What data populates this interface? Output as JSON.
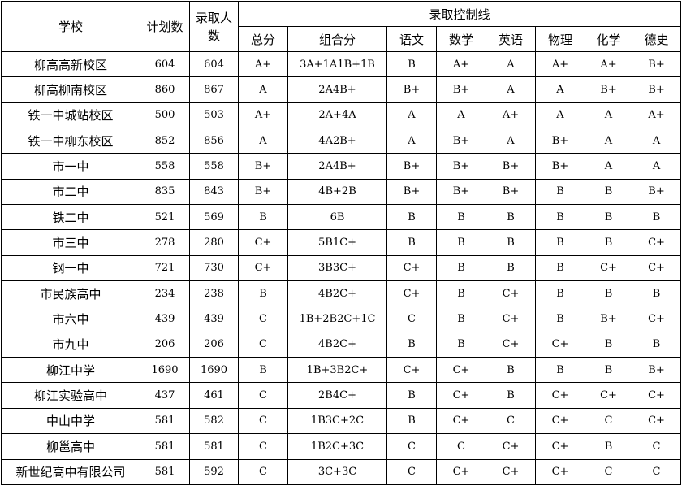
{
  "header": {
    "school": "学校",
    "plan": "计划数",
    "admitted": "录取人数",
    "control_line": "录取控制线",
    "subcolumns": [
      "总分",
      "组合分",
      "语文",
      "数学",
      "英语",
      "物理",
      "化学",
      "德史"
    ]
  },
  "rows": [
    {
      "school": "柳高高新校区",
      "plan": "604",
      "admitted": "604",
      "grades": [
        "A+",
        "3A+1A1B+1B",
        "B",
        "A+",
        "A",
        "A+",
        "A+",
        "B+"
      ]
    },
    {
      "school": "柳高柳南校区",
      "plan": "860",
      "admitted": "867",
      "grades": [
        "A",
        "2A4B+",
        "B+",
        "B+",
        "A",
        "A",
        "B+",
        "B+"
      ]
    },
    {
      "school": "铁一中城站校区",
      "plan": "500",
      "admitted": "503",
      "grades": [
        "A+",
        "2A+4A",
        "A",
        "A",
        "A+",
        "A",
        "A",
        "A+"
      ]
    },
    {
      "school": "铁一中柳东校区",
      "plan": "852",
      "admitted": "856",
      "grades": [
        "A",
        "4A2B+",
        "A",
        "B+",
        "A",
        "B+",
        "A",
        "A"
      ]
    },
    {
      "school": "市一中",
      "plan": "558",
      "admitted": "558",
      "grades": [
        "B+",
        "2A4B+",
        "B+",
        "B+",
        "B+",
        "B+",
        "A",
        "A"
      ]
    },
    {
      "school": "市二中",
      "plan": "835",
      "admitted": "843",
      "grades": [
        "B+",
        "4B+2B",
        "B+",
        "B+",
        "B+",
        "B",
        "B",
        "B+"
      ]
    },
    {
      "school": "铁二中",
      "plan": "521",
      "admitted": "569",
      "grades": [
        "B",
        "6B",
        "B",
        "B",
        "B",
        "B",
        "B",
        "B"
      ]
    },
    {
      "school": "市三中",
      "plan": "278",
      "admitted": "280",
      "grades": [
        "C+",
        "5B1C+",
        "B",
        "B",
        "B",
        "B",
        "B",
        "C+"
      ]
    },
    {
      "school": "钢一中",
      "plan": "721",
      "admitted": "730",
      "grades": [
        "C+",
        "3B3C+",
        "C+",
        "B",
        "B",
        "B",
        "C+",
        "C+"
      ]
    },
    {
      "school": "市民族高中",
      "plan": "234",
      "admitted": "238",
      "grades": [
        "B",
        "4B2C+",
        "C+",
        "B",
        "C+",
        "B",
        "B",
        "B"
      ]
    },
    {
      "school": "市六中",
      "plan": "439",
      "admitted": "439",
      "grades": [
        "C",
        "1B+2B2C+1C",
        "C",
        "B",
        "C+",
        "B",
        "B+",
        "C+"
      ]
    },
    {
      "school": "市九中",
      "plan": "206",
      "admitted": "206",
      "grades": [
        "C",
        "4B2C+",
        "B",
        "B",
        "C+",
        "C+",
        "B",
        "B"
      ]
    },
    {
      "school": "柳江中学",
      "plan": "1690",
      "admitted": "1690",
      "grades": [
        "B",
        "1B+3B2C+",
        "C+",
        "C+",
        "B",
        "B",
        "B",
        "B+"
      ]
    },
    {
      "school": "柳江实验高中",
      "plan": "437",
      "admitted": "461",
      "grades": [
        "C",
        "2B4C+",
        "B",
        "C+",
        "B",
        "C+",
        "C+",
        "C+"
      ]
    },
    {
      "school": "中山中学",
      "plan": "581",
      "admitted": "582",
      "grades": [
        "C",
        "1B3C+2C",
        "B",
        "C+",
        "C",
        "C+",
        "C",
        "C+"
      ]
    },
    {
      "school": "柳邕高中",
      "plan": "581",
      "admitted": "581",
      "grades": [
        "C",
        "1B2C+3C",
        "C",
        "C",
        "C+",
        "C+",
        "B",
        "C"
      ]
    },
    {
      "school": "新世纪高中有限公司",
      "plan": "581",
      "admitted": "592",
      "grades": [
        "C",
        "3C+3C",
        "C",
        "C+",
        "C+",
        "C+",
        "C",
        "C"
      ]
    }
  ]
}
